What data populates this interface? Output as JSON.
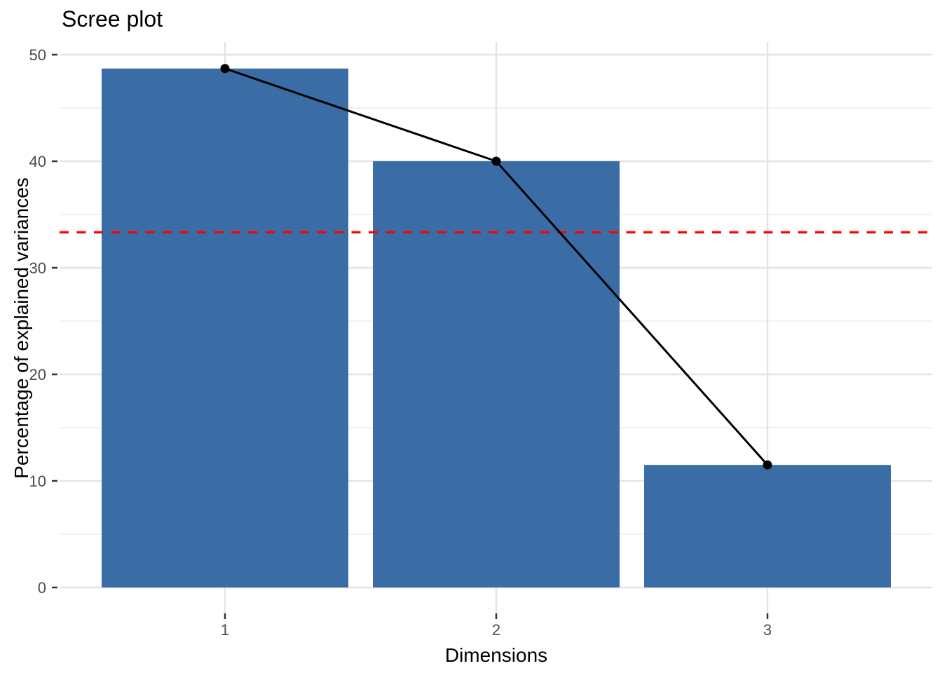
{
  "figure": {
    "background": "#FFFFFF"
  },
  "chart_data": {
    "type": "bar",
    "title": "Scree plot",
    "xlabel": "Dimensions",
    "ylabel": "Percentage of explained variances",
    "categories": [
      "1",
      "2",
      "3"
    ],
    "values": [
      48.7,
      40.0,
      11.5
    ],
    "series": [
      {
        "name": "explained-variance-bars",
        "type": "bar",
        "values": [
          48.7,
          40.0,
          11.5
        ]
      },
      {
        "name": "explained-variance-line",
        "type": "line-with-points",
        "values": [
          48.7,
          40.0,
          11.5
        ]
      }
    ],
    "threshold_line": {
      "value": 33.33,
      "style": "dashed",
      "color": "#FF0000"
    },
    "ylim": [
      0,
      50
    ],
    "yticks": [
      0,
      10,
      20,
      30,
      40,
      50
    ],
    "yticks_minor": [
      5,
      15,
      25,
      35,
      45
    ],
    "grid": "major and minor horizontal, major vertical at bar centers",
    "legend": "none",
    "colors": {
      "bar_fill": "#3A6DA6",
      "line": "#000000",
      "point": "#000000",
      "threshold": "#FF0000",
      "grid_major": "#E4E4E4",
      "grid_minor": "#EFEFEF",
      "tick_mark": "#333333",
      "tick_text": "#4D4D4D",
      "title_text": "#000000",
      "background": "#FFFFFF"
    }
  }
}
